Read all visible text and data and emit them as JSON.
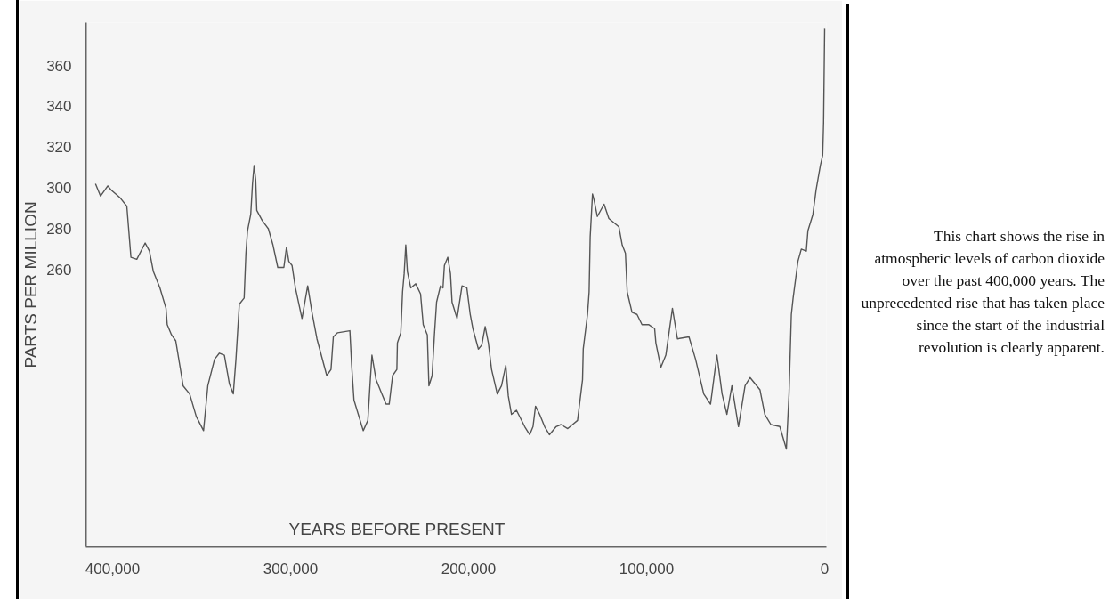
{
  "chart_data": {
    "type": "line",
    "xlabel": "YEARS BEFORE PRESENT",
    "ylabel": "PARTS PER MILLION",
    "x": [
      409600,
      406800,
      402700,
      400800,
      395600,
      392000,
      389700,
      386400,
      381700,
      379300,
      377100,
      373400,
      370000,
      369300,
      366900,
      364500,
      361300,
      360400,
      356700,
      353000,
      348900,
      346500,
      342700,
      340000,
      337200,
      334400,
      332200,
      330700,
      328800,
      326100,
      325100,
      324200,
      322400,
      321400,
      320500,
      319600,
      319000,
      315900,
      312500,
      309900,
      307200,
      303800,
      302300,
      301000,
      299200,
      297300,
      293600,
      290400,
      288000,
      285200,
      279700,
      277300,
      276000,
      273600,
      266700,
      265700,
      264400,
      259200,
      256600,
      255200,
      254300,
      252000,
      246400,
      244600,
      242700,
      240300,
      240000,
      238100,
      237100,
      236200,
      235300,
      234400,
      232500,
      229700,
      227000,
      225500,
      223200,
      222300,
      220500,
      219200,
      218000,
      215800,
      214400,
      213600,
      211700,
      210200,
      209300,
      206500,
      203700,
      201000,
      199100,
      197600,
      194500,
      192600,
      190700,
      188900,
      187100,
      183900,
      181500,
      179100,
      177700,
      175900,
      173100,
      168500,
      165700,
      163800,
      162400,
      160100,
      157300,
      154600,
      150800,
      148100,
      144300,
      141600,
      138800,
      136000,
      135600,
      133200,
      132300,
      131700,
      130400,
      129500,
      127700,
      123900,
      121200,
      115600,
      113700,
      111900,
      110900,
      108200,
      105400,
      102600,
      98900,
      95500,
      94800,
      92000,
      89200,
      85500,
      82700,
      76200,
      72500,
      67900,
      64100,
      60500,
      57600,
      54900,
      52100,
      48400,
      44700,
      41900,
      36300,
      33600,
      30200,
      25200,
      21500,
      20000,
      19600,
      18700,
      17700,
      15000,
      13100,
      10300,
      9400,
      6600,
      4800,
      2400,
      1100,
      600,
      0
    ],
    "series": [
      {
        "color": "#555555",
        "values": [
          302,
          296,
          301,
          299,
          295,
          291,
          266,
          265,
          273,
          269,
          259,
          251,
          241,
          233,
          228,
          225,
          208,
          203,
          199,
          188,
          181,
          203,
          216,
          219,
          218,
          204,
          199,
          216,
          243,
          246,
          268,
          279,
          287,
          302,
          311,
          304,
          289,
          284,
          280,
          272,
          261,
          261,
          271,
          264,
          262,
          251,
          236,
          252,
          239,
          226,
          208,
          211,
          227,
          229,
          230,
          213,
          196,
          181,
          186,
          206,
          218,
          206,
          194,
          194,
          208,
          211,
          224,
          229,
          249,
          258,
          272,
          259,
          251,
          253,
          248,
          233,
          228,
          203,
          208,
          228,
          244,
          252,
          251,
          262,
          266,
          258,
          244,
          236,
          252,
          251,
          238,
          231,
          221,
          223,
          232,
          224,
          211,
          199,
          203,
          213,
          198,
          189,
          191,
          183,
          179,
          183,
          193,
          189,
          183,
          179,
          183,
          184,
          182,
          184,
          186,
          206,
          221,
          238,
          249,
          276,
          297,
          294,
          286,
          292,
          285,
          281,
          272,
          268,
          249,
          239,
          238,
          233,
          233,
          231,
          224,
          212,
          218,
          241,
          226,
          227,
          216,
          199,
          194,
          218,
          199,
          189,
          203,
          183,
          203,
          207,
          201,
          189,
          184,
          183,
          172,
          199,
          211,
          238,
          246,
          264,
          270,
          269,
          279,
          287,
          299,
          311,
          316,
          332,
          378
        ]
      }
    ],
    "xlim": [
      415000,
      -1000
    ],
    "ylim": [
      124,
      381
    ],
    "xticks": [
      {
        "value": 400000,
        "label": "400,000"
      },
      {
        "value": 300000,
        "label": "300,000"
      },
      {
        "value": 200000,
        "label": "200,000"
      },
      {
        "value": 100000,
        "label": "100,000"
      },
      0
    ],
    "yticks": [
      260,
      280,
      300,
      320,
      340,
      360
    ],
    "annotations": [
      "This chart shows the rise in atmospheric levels of carbon dioxide over the past 400,000 years. The unprecedented rise that has taken place since the start of the industrial revolution is clearly apparent."
    ]
  }
}
